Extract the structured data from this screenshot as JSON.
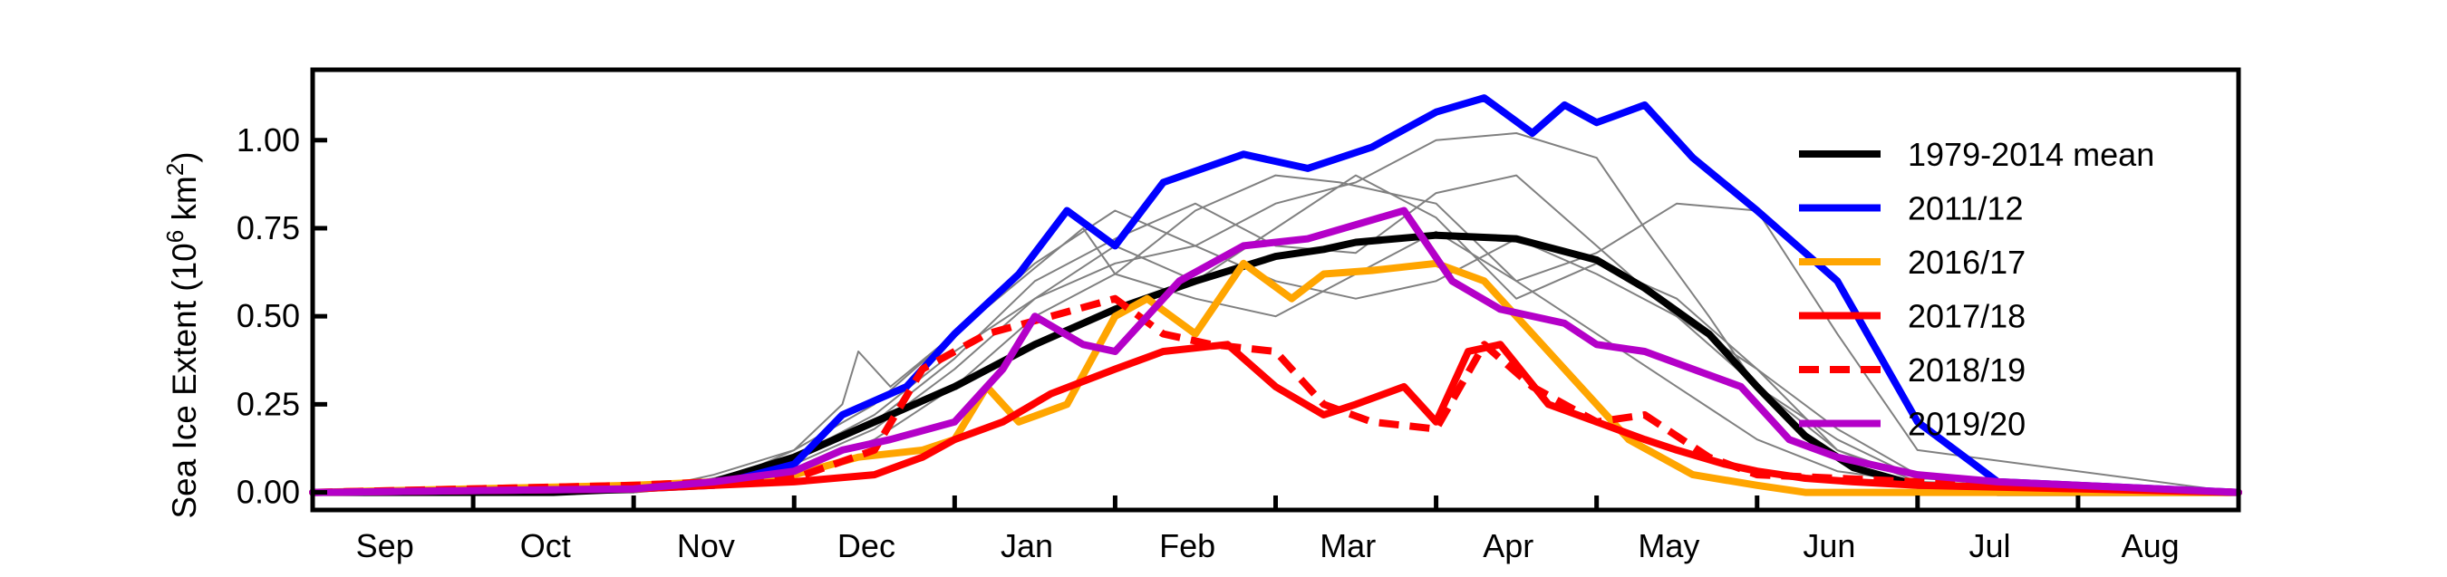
{
  "chart_data": {
    "type": "line",
    "title": "",
    "xlabel": "",
    "ylabel": "Sea Ice Extent (10",
    "ylabel_superscript": "6",
    "ylabel_unit": " km",
    "ylabel_unit_superscript": "2",
    "ylabel_close": ")",
    "x_unit": "month (Sep to Aug)",
    "xlim": [
      0,
      12
    ],
    "ylim": [
      -0.05,
      1.2
    ],
    "x_ticks": [
      1,
      2,
      3,
      4,
      5,
      6,
      7,
      8,
      9,
      10,
      11
    ],
    "month_labels": [
      "Sep",
      "Oct",
      "Nov",
      "Dec",
      "Jan",
      "Feb",
      "Mar",
      "Apr",
      "May",
      "Jun",
      "Jul",
      "Aug"
    ],
    "y_ticks": [
      0.0,
      0.25,
      0.5,
      0.75,
      1.0
    ],
    "y_tick_labels": [
      "0.00",
      "0.25",
      "0.50",
      "0.75",
      "1.00"
    ],
    "legend_position": "right",
    "grid": false,
    "background_series": [
      {
        "color": "#808080",
        "x": [
          0,
          2,
          2.3,
          2.7,
          3,
          3.3,
          3.4,
          3.6,
          4,
          4.4,
          4.8,
          5,
          5.5,
          6,
          6.4,
          7,
          7.5,
          8,
          8.5,
          9,
          9.5,
          10,
          10.4,
          12
        ],
        "y": [
          0,
          0,
          0.02,
          0.06,
          0.12,
          0.25,
          0.4,
          0.3,
          0.45,
          0.6,
          0.75,
          0.62,
          0.8,
          0.9,
          0.88,
          0.82,
          0.6,
          0.45,
          0.3,
          0.15,
          0.06,
          0.03,
          0.02,
          0
        ]
      },
      {
        "color": "#808080",
        "x": [
          0,
          2,
          2.5,
          3,
          3.5,
          4,
          4.5,
          5,
          5.5,
          6,
          6.5,
          7,
          7.5,
          8,
          8.3,
          8.7,
          9,
          9.5,
          10,
          12
        ],
        "y": [
          0,
          0,
          0.04,
          0.1,
          0.22,
          0.4,
          0.55,
          0.65,
          0.7,
          0.82,
          0.88,
          1.0,
          1.02,
          0.95,
          0.75,
          0.5,
          0.3,
          0.12,
          0.04,
          0
        ]
      },
      {
        "color": "#808080",
        "x": [
          0,
          2,
          2.5,
          3,
          3.5,
          4,
          4.5,
          5,
          5.5,
          6,
          6.5,
          7,
          7.5,
          8,
          8.5,
          9,
          9.5,
          10,
          12
        ],
        "y": [
          0,
          0,
          0.05,
          0.12,
          0.25,
          0.45,
          0.65,
          0.8,
          0.7,
          0.6,
          0.55,
          0.6,
          0.72,
          0.62,
          0.5,
          0.35,
          0.12,
          0.03,
          0
        ]
      },
      {
        "color": "#808080",
        "x": [
          0,
          2,
          2.5,
          3,
          3.5,
          4,
          4.5,
          5,
          5.5,
          6,
          6.5,
          7,
          7.5,
          8,
          8.5,
          9,
          9.5,
          10,
          12
        ],
        "y": [
          0,
          0,
          0.03,
          0.08,
          0.18,
          0.35,
          0.55,
          0.7,
          0.6,
          0.75,
          0.9,
          0.78,
          0.55,
          0.65,
          0.55,
          0.35,
          0.18,
          0.05,
          0
        ]
      },
      {
        "color": "#808080",
        "x": [
          0,
          2,
          2.5,
          3,
          3.5,
          4,
          4.5,
          5,
          5.5,
          6,
          6.5,
          7,
          7.5,
          8,
          8.5,
          9,
          9.5,
          10,
          12
        ],
        "y": [
          0,
          0,
          0.02,
          0.06,
          0.15,
          0.3,
          0.5,
          0.62,
          0.55,
          0.5,
          0.62,
          0.74,
          0.6,
          0.68,
          0.82,
          0.8,
          0.45,
          0.12,
          0
        ]
      },
      {
        "color": "#808080",
        "x": [
          0,
          2,
          2.5,
          3,
          3.5,
          4,
          4.5,
          5,
          5.5,
          6,
          6.5,
          7,
          7.5,
          8,
          8.5,
          9,
          9.5,
          10,
          12
        ],
        "y": [
          0,
          0,
          0.04,
          0.1,
          0.2,
          0.38,
          0.6,
          0.72,
          0.82,
          0.7,
          0.68,
          0.85,
          0.9,
          0.7,
          0.5,
          0.3,
          0.15,
          0.04,
          0
        ]
      }
    ],
    "series": [
      {
        "name": "1979-2014 mean",
        "color": "#000000",
        "dash": "",
        "x": [
          0,
          1.5,
          2,
          2.5,
          3,
          3.5,
          4,
          4.5,
          5,
          5.5,
          6,
          6.3,
          6.5,
          7,
          7.5,
          8,
          8.3,
          8.7,
          9,
          9.3,
          9.6,
          10,
          10.5,
          12
        ],
        "y": [
          0,
          0,
          0.01,
          0.03,
          0.1,
          0.2,
          0.3,
          0.42,
          0.52,
          0.6,
          0.67,
          0.69,
          0.71,
          0.73,
          0.72,
          0.66,
          0.58,
          0.45,
          0.3,
          0.16,
          0.07,
          0.02,
          0,
          0
        ]
      },
      {
        "name": "2011/12",
        "color": "#0000ff",
        "dash": "",
        "x": [
          0,
          2,
          2.5,
          3,
          3.3,
          3.7,
          4,
          4.4,
          4.7,
          5,
          5.3,
          5.8,
          6.2,
          6.6,
          7,
          7.3,
          7.6,
          7.8,
          8,
          8.3,
          8.6,
          9,
          9.5,
          10,
          10.5,
          12
        ],
        "y": [
          0,
          0.01,
          0.02,
          0.08,
          0.22,
          0.3,
          0.45,
          0.62,
          0.8,
          0.7,
          0.88,
          0.96,
          0.92,
          0.98,
          1.08,
          1.12,
          1.02,
          1.1,
          1.05,
          1.1,
          0.95,
          0.8,
          0.6,
          0.2,
          0.03,
          0
        ]
      },
      {
        "name": "2016/17",
        "color": "#ffa500",
        "dash": "",
        "x": [
          0,
          2,
          2.5,
          3,
          3.4,
          3.8,
          4,
          4.2,
          4.4,
          4.7,
          5,
          5.2,
          5.5,
          5.8,
          6.1,
          6.3,
          6.6,
          7,
          7.3,
          7.6,
          7.9,
          8.2,
          8.6,
          9,
          9.3,
          12
        ],
        "y": [
          0,
          0.02,
          0.03,
          0.05,
          0.1,
          0.12,
          0.15,
          0.3,
          0.2,
          0.25,
          0.5,
          0.55,
          0.45,
          0.65,
          0.55,
          0.62,
          0.63,
          0.65,
          0.6,
          0.45,
          0.3,
          0.15,
          0.05,
          0.02,
          0,
          0
        ]
      },
      {
        "name": "2017/18",
        "color": "#ff0000",
        "dash": "",
        "x": [
          0,
          2,
          2.5,
          3,
          3.5,
          3.8,
          4,
          4.3,
          4.6,
          5,
          5.3,
          5.7,
          6,
          6.3,
          6.5,
          6.8,
          7,
          7.2,
          7.4,
          7.7,
          8,
          8.3,
          8.5,
          8.8,
          9,
          9.3,
          9.6,
          10,
          12
        ],
        "y": [
          0,
          0.01,
          0.02,
          0.03,
          0.05,
          0.1,
          0.15,
          0.2,
          0.28,
          0.35,
          0.4,
          0.42,
          0.3,
          0.22,
          0.25,
          0.3,
          0.2,
          0.4,
          0.42,
          0.25,
          0.2,
          0.15,
          0.12,
          0.08,
          0.06,
          0.04,
          0.03,
          0.02,
          0
        ]
      },
      {
        "name": "2018/19",
        "color": "#ff0000",
        "dash": "22,12",
        "x": [
          0,
          2,
          2.5,
          3,
          3.5,
          3.8,
          4.2,
          4.6,
          5,
          5.3,
          5.6,
          6,
          6.3,
          6.6,
          7,
          7.3,
          7.6,
          8,
          8.3,
          8.7,
          9,
          9.5,
          10,
          12
        ],
        "y": [
          0,
          0.02,
          0.03,
          0.04,
          0.12,
          0.35,
          0.45,
          0.5,
          0.55,
          0.45,
          0.42,
          0.4,
          0.25,
          0.2,
          0.18,
          0.42,
          0.3,
          0.2,
          0.22,
          0.1,
          0.05,
          0.04,
          0.03,
          0
        ]
      },
      {
        "name": "2019/20",
        "color": "#b400c8",
        "dash": "",
        "x": [
          0,
          2,
          2.5,
          3,
          3.3,
          3.6,
          4,
          4.3,
          4.5,
          4.8,
          5,
          5.4,
          5.8,
          6.2,
          6.5,
          6.8,
          7.1,
          7.4,
          7.8,
          8,
          8.3,
          8.6,
          8.9,
          9.2,
          9.5,
          10,
          10.5,
          12
        ],
        "y": [
          0,
          0.01,
          0.03,
          0.06,
          0.12,
          0.15,
          0.2,
          0.35,
          0.5,
          0.42,
          0.4,
          0.6,
          0.7,
          0.72,
          0.76,
          0.8,
          0.6,
          0.52,
          0.48,
          0.42,
          0.4,
          0.35,
          0.3,
          0.15,
          0.1,
          0.05,
          0.03,
          0
        ]
      }
    ]
  }
}
